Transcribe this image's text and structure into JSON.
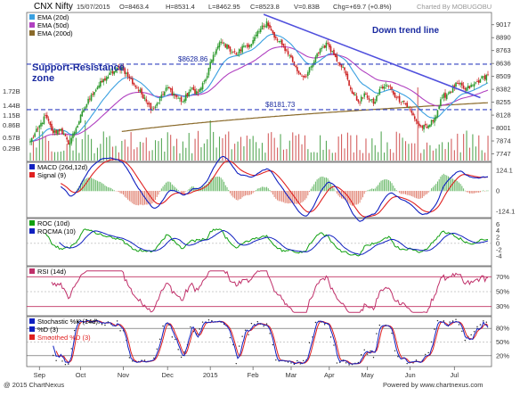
{
  "header": {
    "title": "CNX Nifty",
    "date": "15/07/2015",
    "open": "O=8463.4",
    "high": "H=8531.4",
    "low": "L=8462.95",
    "close": "C=8523.8",
    "volume": "V=0.83B",
    "change": "Chg=+69.7 (+0.8%)",
    "credit": "Charted By MOBUGOBU"
  },
  "footer": {
    "copyright": "@ 2015 ChartNexus",
    "powered": "Powered by www.chartnexus.com"
  },
  "colors": {
    "candle_up": "#2e9a2e",
    "candle_down": "#cc2222",
    "ema20": "#3aa0e0",
    "ema50": "#b040c0",
    "ema200": "#8a6a2a",
    "macd": "#1020c0",
    "signal": "#e02020",
    "roc": "#10a010",
    "rocma": "#1020c0",
    "rsi": "#c0306a",
    "stoch_k": "#1020c0",
    "stoch_d": "#e02020",
    "trendline": "#5050dd",
    "sr_line": "#3040c0"
  },
  "chart_data": [
    {
      "type": "candlestick",
      "panel": "price",
      "legend": [
        "EMA (20d)",
        "EMA (50d)",
        "EMA (200d)"
      ],
      "x_tick_labels": [
        "Sep",
        "Oct",
        "Nov",
        "Dec",
        "2015",
        "Feb",
        "Mar",
        "Apr",
        "May",
        "Jun",
        "Jul"
      ],
      "y_tick_labels": [
        "9017",
        "8890",
        "8763",
        "8636",
        "8509",
        "8382",
        "8255",
        "8128",
        "8001",
        "7874",
        "7747"
      ],
      "ylim": [
        7690,
        9120
      ],
      "volume_tick_labels": [
        "1.72B",
        "1.44B",
        "1.15B",
        "0.86B",
        "0.57B",
        "0.29B"
      ],
      "annotations": {
        "resistance_label": "$8628.86",
        "support_label": "$8181.73",
        "zone_label": "Support-Resistance zone",
        "trend_label": "Down trend line"
      },
      "resistance": 8628.86,
      "support": 8181.73,
      "trendline": {
        "from": {
          "x": "Mar",
          "y": 9119
        },
        "to": {
          "x": "Jul",
          "y": 8300
        }
      },
      "close_anchors": [
        [
          0,
          7870
        ],
        [
          5,
          7990
        ],
        [
          10,
          8120
        ],
        [
          15,
          7950
        ],
        [
          20,
          7990
        ],
        [
          25,
          7840
        ],
        [
          30,
          8000
        ],
        [
          35,
          8180
        ],
        [
          40,
          8330
        ],
        [
          45,
          8420
        ],
        [
          50,
          8500
        ],
        [
          55,
          8560
        ],
        [
          60,
          8600
        ],
        [
          65,
          8490
        ],
        [
          70,
          8390
        ],
        [
          75,
          8300
        ],
        [
          80,
          8180
        ],
        [
          85,
          8290
        ],
        [
          90,
          8400
        ],
        [
          95,
          8320
        ],
        [
          100,
          8260
        ],
        [
          105,
          8380
        ],
        [
          110,
          8350
        ],
        [
          115,
          8480
        ],
        [
          120,
          8720
        ],
        [
          125,
          8850
        ],
        [
          130,
          8790
        ],
        [
          135,
          8720
        ],
        [
          140,
          8810
        ],
        [
          145,
          8830
        ],
        [
          150,
          8950
        ],
        [
          155,
          9050
        ],
        [
          160,
          8890
        ],
        [
          165,
          8820
        ],
        [
          170,
          8720
        ],
        [
          175,
          8560
        ],
        [
          180,
          8500
        ],
        [
          185,
          8620
        ],
        [
          190,
          8780
        ],
        [
          195,
          8830
        ],
        [
          200,
          8700
        ],
        [
          205,
          8600
        ],
        [
          210,
          8380
        ],
        [
          215,
          8260
        ],
        [
          220,
          8330
        ],
        [
          225,
          8240
        ],
        [
          230,
          8400
        ],
        [
          235,
          8420
        ],
        [
          240,
          8300
        ],
        [
          245,
          8260
        ],
        [
          250,
          8150
        ],
        [
          255,
          8020
        ],
        [
          260,
          8000
        ],
        [
          265,
          8100
        ],
        [
          270,
          8300
        ],
        [
          275,
          8360
        ],
        [
          280,
          8440
        ],
        [
          285,
          8380
        ],
        [
          290,
          8420
        ],
        [
          295,
          8480
        ],
        [
          300,
          8524
        ]
      ]
    },
    {
      "type": "line",
      "panel": "macd",
      "legend": [
        "MACD (26d,12d)",
        "Signal (9)"
      ],
      "y_tick_labels": [
        "124.1",
        "0",
        "-124.1"
      ],
      "ylim": [
        -150,
        150
      ]
    },
    {
      "type": "line",
      "panel": "roc",
      "legend": [
        "ROC (10d)",
        "ROCMA (10)"
      ],
      "y_tick_labels": [
        "6",
        "4",
        "2",
        "0",
        "-2",
        "-4"
      ],
      "ylim": [
        -6.5,
        7
      ]
    },
    {
      "type": "line",
      "panel": "rsi",
      "legend": [
        "RSI (14d)"
      ],
      "y_tick_labels": [
        "70%",
        "50%",
        "30%"
      ],
      "ylim": [
        20,
        80
      ]
    },
    {
      "type": "line",
      "panel": "stochastic",
      "legend": [
        "Stochastic %K (14d)",
        "%D (3)",
        "Smoothed %D (3)"
      ],
      "y_tick_labels": [
        "80%",
        "50%",
        "20%"
      ],
      "ylim": [
        0,
        100
      ]
    }
  ]
}
